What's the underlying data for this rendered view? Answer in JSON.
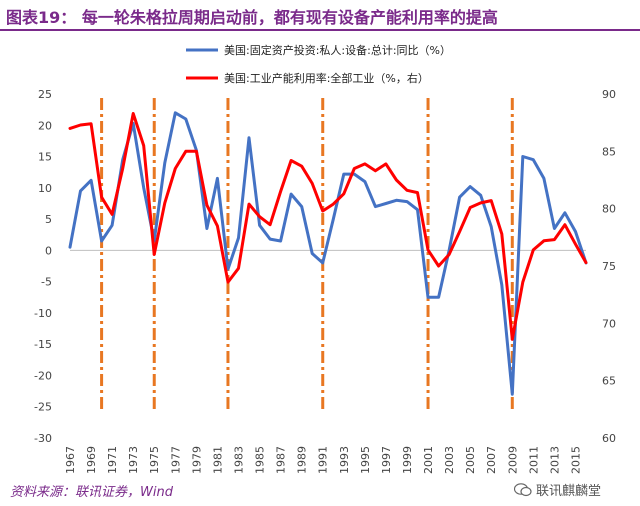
{
  "header": {
    "title": "图表19：  每一轮朱格拉周期启动前，都有现有设备产能利用率的提高"
  },
  "footer": {
    "source": "资料来源：联讯证券，Wind",
    "watermark": "联讯麒麟堂"
  },
  "colors": {
    "title": "#7a2a8a",
    "investment": "#4472c4",
    "capacity": "#ff0000",
    "cycle_marker": "#e87722"
  },
  "chart_data": {
    "type": "line",
    "title": "",
    "x": [
      1967,
      1968,
      1969,
      1970,
      1971,
      1972,
      1973,
      1974,
      1975,
      1976,
      1977,
      1978,
      1979,
      1980,
      1981,
      1982,
      1983,
      1984,
      1985,
      1986,
      1987,
      1988,
      1989,
      1990,
      1991,
      1992,
      1993,
      1994,
      1995,
      1996,
      1997,
      1998,
      1999,
      2000,
      2001,
      2002,
      2003,
      2004,
      2005,
      2006,
      2007,
      2008,
      2009,
      2010,
      2011,
      2012,
      2013,
      2014,
      2015,
      2016
    ],
    "x_tick_labels": [
      "1967",
      "1969",
      "1971",
      "1973",
      "1975",
      "1977",
      "1979",
      "1981",
      "1983",
      "1985",
      "1987",
      "1989",
      "1991",
      "1993",
      "1995",
      "1997",
      "1999",
      "2001",
      "2003",
      "2005",
      "2007",
      "2009",
      "2011",
      "2013",
      "2015"
    ],
    "series": [
      {
        "name": "美国:固定资产投资:私人:设备:总计:同比（%）",
        "axis": "left",
        "values": [
          0.5,
          9.5,
          11.2,
          1.5,
          4,
          14.5,
          20.3,
          10,
          1.5,
          14,
          22,
          21,
          16,
          3.5,
          11.5,
          -3,
          2,
          18,
          4,
          1.8,
          1.5,
          9,
          7,
          -0.5,
          -2,
          5,
          12.2,
          12.2,
          11,
          7,
          7.5,
          8,
          7.8,
          6.5,
          -7.5,
          -7.5,
          0,
          8.5,
          10.2,
          8.8,
          3.8,
          -5.5,
          -23,
          15,
          14.5,
          11.5,
          3.5,
          6,
          3,
          -2
        ]
      },
      {
        "name": "美国:工业产能利用率:全部工业（%，右）",
        "axis": "right",
        "values": [
          87,
          87.3,
          87.4,
          81,
          79.5,
          83.5,
          88.3,
          85.5,
          76,
          80.5,
          83.5,
          85,
          85,
          80.3,
          78.5,
          73.6,
          74.8,
          80.4,
          79.3,
          78.6,
          81.5,
          84.2,
          83.7,
          82.2,
          79.8,
          80.4,
          81.3,
          83.5,
          83.9,
          83.3,
          83.9,
          82.5,
          81.6,
          81.4,
          76.4,
          75,
          76,
          78,
          80.1,
          80.5,
          80.7,
          77.8,
          68.6,
          73.6,
          76.4,
          77.2,
          77.3,
          78.6,
          76.9,
          75.3
        ]
      }
    ],
    "ylim_left": [
      -30,
      25
    ],
    "yticks_left": [
      "25",
      "20",
      "15",
      "10",
      "5",
      "0",
      "-5",
      "-10",
      "-15",
      "-20",
      "-25",
      "-30"
    ],
    "ylim_right": [
      60,
      90
    ],
    "yticks_right": [
      "90",
      "85",
      "80",
      "75",
      "70",
      "65",
      "60"
    ],
    "cycle_start_markers": [
      1970,
      1975,
      1982,
      1991,
      2001,
      2009
    ],
    "legend_position": "top-right",
    "grid": false
  }
}
